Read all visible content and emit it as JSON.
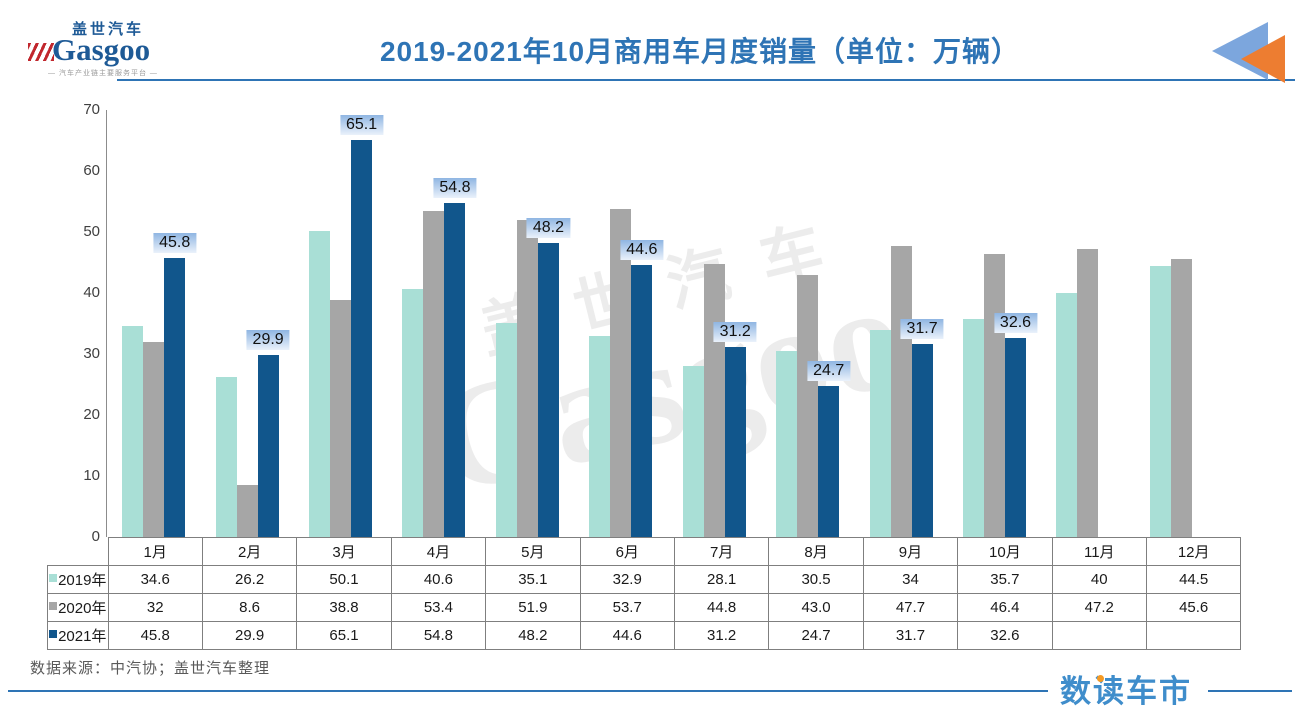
{
  "header": {
    "logo": {
      "brand_cn": "盖世汽车",
      "brand_en": "Gasgoo",
      "tagline": "— 汽车产业链主要服务平台 —"
    },
    "title": "2019-2021年10月商用车月度销量（单位：万辆）"
  },
  "decor": {
    "back_arrows": "double-left-arrow",
    "arrow_blue": "#7ca6dd",
    "arrow_orange": "#ed7d31",
    "accent_blue": "#2e74b5"
  },
  "watermark": {
    "line1": "盖世汽车",
    "line2": "Gasgoo"
  },
  "chart_data": {
    "type": "bar",
    "title": "2019-2021年10月商用车月度销量（单位：万辆）",
    "unit": "万辆",
    "categories": [
      "1月",
      "2月",
      "3月",
      "4月",
      "5月",
      "6月",
      "7月",
      "8月",
      "9月",
      "10月",
      "11月",
      "12月"
    ],
    "series": [
      {
        "name": "2019年",
        "color": "#a9dfd6",
        "values": [
          34.6,
          26.2,
          50.1,
          40.6,
          35.1,
          32.9,
          28.1,
          30.5,
          34,
          35.7,
          40,
          44.5
        ],
        "display": [
          "34.6",
          "26.2",
          "50.1",
          "40.6",
          "35.1",
          "32.9",
          "28.1",
          "30.5",
          "34",
          "35.7",
          "40",
          "44.5"
        ],
        "data_labels": false
      },
      {
        "name": "2020年",
        "color": "#a6a6a6",
        "values": [
          32,
          8.6,
          38.8,
          53.4,
          51.9,
          53.7,
          44.8,
          43.0,
          47.7,
          46.4,
          47.2,
          45.6
        ],
        "display": [
          "32",
          "8.6",
          "38.8",
          "53.4",
          "51.9",
          "53.7",
          "44.8",
          "43.0",
          "47.7",
          "46.4",
          "47.2",
          "45.6"
        ],
        "data_labels": false
      },
      {
        "name": "2021年",
        "color": "#11568c",
        "values": [
          45.8,
          29.9,
          65.1,
          54.8,
          48.2,
          44.6,
          31.2,
          24.7,
          31.7,
          32.6,
          null,
          null
        ],
        "display": [
          "45.8",
          "29.9",
          "65.1",
          "54.8",
          "48.2",
          "44.6",
          "31.2",
          "24.7",
          "31.7",
          "32.6",
          "",
          ""
        ],
        "data_labels": true
      }
    ],
    "ylim": [
      0,
      70
    ],
    "yticks": [
      0,
      10,
      20,
      30,
      40,
      50,
      60,
      70
    ],
    "grid": false,
    "legend_position": "table-row-labels",
    "label_bg_top": "#8fb6e2",
    "label_bg_bottom": "#eaf2fb"
  },
  "footer": {
    "source": "数据来源：中汽协；盖世汽车整理",
    "logo": "数读车市"
  }
}
